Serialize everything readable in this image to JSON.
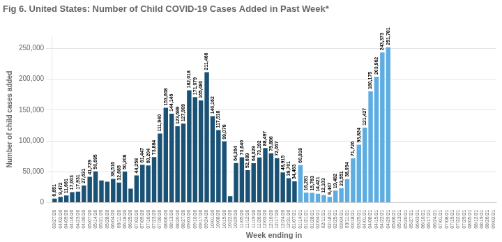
{
  "chart_data": {
    "type": "bar",
    "title": "Fig 6. United States: Number of Child COVID-19 Cases Added in Past Week*",
    "xlabel": "Week ending in",
    "ylabel": "Number of child cases added",
    "categories": [
      "03/27/20",
      "04/02/20",
      "04/09/20",
      "04/16/20",
      "04/23/20",
      "04/30/20",
      "05/07/20",
      "05/14/20",
      "05/21/20",
      "05/28/20",
      "06/04/20",
      "06/11/20",
      "06/18/20",
      "06/25/20",
      "07/02/20",
      "07/09/20",
      "07/16/20",
      "07/23/20",
      "07/30/20",
      "08/06/20",
      "08/13/20",
      "08/20/20",
      "08/27/20",
      "09/03/20",
      "09/10/20",
      "09/17/20",
      "09/24/20",
      "10/01/20",
      "10/08/20",
      "10/15/20",
      "10/22/20",
      "10/29/20",
      "11/05/20",
      "11/12/20",
      "11/19/20",
      "11/26/20",
      "12/03/20",
      "12/10/20",
      "12/17/20",
      "12/24/20",
      "12/31/20",
      "01/07/21",
      "01/14/21",
      "01/21/21",
      "01/28/21",
      "02/04/21",
      "02/11/21",
      "02/18/21",
      "02/25/21",
      "03/04/21",
      "03/11/21",
      "03/18/21",
      "03/25/21",
      "04/01/21",
      "04/08/21",
      "04/15/21",
      "04/22/21",
      "04/29/21",
      "05/06/21",
      "05/13/21",
      "05/20/21",
      "05/27/21",
      "06/03/21",
      "06/10/21",
      "06/17/21",
      "06/24/21",
      "07/01/21",
      "07/08/21",
      "07/15/21",
      "07/22/21",
      "07/29/21",
      "08/05/21",
      "08/12/21",
      "08/19/21",
      "08/26/21",
      "09/02/21"
    ],
    "values": [
      6651,
      9472,
      11661,
      17003,
      17931,
      27631,
      41729,
      50695,
      35903,
      33855,
      38516,
      32685,
      50208,
      22668,
      44258,
      61447,
      60204,
      73884,
      111940,
      153608,
      144146,
      123689,
      127909,
      182018,
      171079,
      165480,
      211466,
      140162,
      117518,
      99078,
      10640,
      64264,
      73640,
      52699,
      64029,
      73192,
      88497,
      79886,
      72067,
      48915,
      39701,
      34463,
      60918,
      16281,
      15763,
      14421,
      12103,
      9447,
      19482,
      23551,
      38054,
      71726,
      93824,
      121427,
      180175,
      203962,
      243373,
      251781,
      0,
      0,
      0,
      0,
      0,
      0,
      0,
      0,
      0,
      0,
      0,
      0,
      0,
      0,
      0,
      0,
      0,
      0
    ],
    "value_labels": [
      "6,651",
      "9,472",
      "11,661",
      "17,003",
      "17,931",
      "27,631",
      "41,729",
      "50,695",
      null,
      null,
      "38,516",
      "32,685",
      "50,208",
      null,
      "44,258",
      "61,447",
      "60,204",
      "73,884",
      "111,940",
      "153,608",
      "144,146",
      "123,689",
      "127,909",
      "182,018",
      "171,079",
      "165,480",
      "211,466",
      "140,162",
      "117,518",
      "99,078",
      null,
      "64,264",
      "73,640",
      "52,699",
      "64,029",
      "73,192",
      "88,497",
      "79,886",
      "72,067",
      "48,915",
      "39,701",
      "34,463",
      "60,918",
      "16,281",
      "15,763",
      "14,421",
      "12,103",
      "9,447",
      "19,482",
      "23,551",
      "38,054",
      "71,726",
      "93,824",
      "121,427",
      "180,175",
      "203,962",
      "243,373",
      "251,781",
      null,
      null,
      null,
      null,
      null,
      null,
      null,
      null,
      null,
      null,
      null,
      null,
      null,
      null,
      null,
      null,
      null,
      null
    ],
    "colors": [
      "#1a5276",
      "#1a5276",
      "#1a5276",
      "#1a5276",
      "#1a5276",
      "#1a5276",
      "#1a5276",
      "#1a5276",
      "#1a5276",
      "#1a5276",
      "#1a5276",
      "#1a5276",
      "#1a5276",
      "#1a5276",
      "#1a5276",
      "#1a5276",
      "#1a5276",
      "#1a5276",
      "#1a5276",
      "#1a5276",
      "#1a5276",
      "#1a5276",
      "#1a5276",
      "#1a5276",
      "#1a5276",
      "#1a5276",
      "#1a5276",
      "#1a5276",
      "#1a5276",
      "#1a5276",
      "#1a5276",
      "#1a5276",
      "#1a5276",
      "#1a5276",
      "#1a5276",
      "#1a5276",
      "#1a5276",
      "#1a5276",
      "#1a5276",
      "#1a5276",
      "#1a5276",
      "#1a5276",
      "#5dade2",
      "#5dade2",
      "#5dade2",
      "#5dade2",
      "#5dade2",
      "#5dade2",
      "#5dade2",
      "#5dade2",
      "#5dade2",
      "#5dade2",
      "#5dade2",
      "#5dade2",
      "#5dade2",
      "#5dade2",
      "#5dade2",
      "#5dade2",
      "#00000000",
      "#00000000",
      "#00000000",
      "#00000000",
      "#00000000",
      "#00000000",
      "#00000000",
      "#00000000",
      "#00000000",
      "#00000000",
      "#00000000",
      "#00000000",
      "#00000000",
      "#00000000",
      "#00000000",
      "#00000000",
      "#00000000",
      "#00000000"
    ],
    "data_labels": true,
    "ylim": [
      0,
      270000
    ],
    "yticks": [
      0,
      {
        "value": 50000,
        "label": "50,000"
      },
      {
        "value": 100000,
        "label": "100,000"
      },
      {
        "value": 150000,
        "label": "150,000"
      },
      {
        "value": 200000,
        "label": "200,000"
      },
      {
        "value": 250000,
        "label": "250,000"
      }
    ],
    "grid": true
  }
}
